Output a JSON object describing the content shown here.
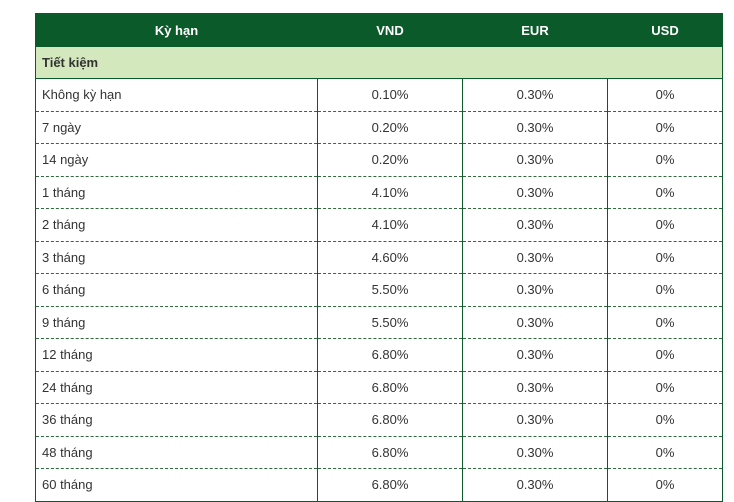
{
  "table": {
    "headers": [
      "Kỳ hạn",
      "VND",
      "EUR",
      "USD"
    ],
    "section_label": "Tiết kiệm",
    "rows": [
      {
        "term": "Không kỳ hạn",
        "vnd": "0.10%",
        "eur": "0.30%",
        "usd": "0%"
      },
      {
        "term": "7 ngày",
        "vnd": "0.20%",
        "eur": "0.30%",
        "usd": "0%"
      },
      {
        "term": "14 ngày",
        "vnd": "0.20%",
        "eur": "0.30%",
        "usd": "0%"
      },
      {
        "term": "1 tháng",
        "vnd": "4.10%",
        "eur": "0.30%",
        "usd": "0%"
      },
      {
        "term": "2 tháng",
        "vnd": "4.10%",
        "eur": "0.30%",
        "usd": "0%"
      },
      {
        "term": "3 tháng",
        "vnd": "4.60%",
        "eur": "0.30%",
        "usd": "0%"
      },
      {
        "term": "6 tháng",
        "vnd": "5.50%",
        "eur": "0.30%",
        "usd": "0%"
      },
      {
        "term": "9 tháng",
        "vnd": "5.50%",
        "eur": "0.30%",
        "usd": "0%"
      },
      {
        "term": "12 tháng",
        "vnd": "6.80%",
        "eur": "0.30%",
        "usd": "0%"
      },
      {
        "term": "24 tháng",
        "vnd": "6.80%",
        "eur": "0.30%",
        "usd": "0%"
      },
      {
        "term": "36 tháng",
        "vnd": "6.80%",
        "eur": "0.30%",
        "usd": "0%"
      },
      {
        "term": "48 tháng",
        "vnd": "6.80%",
        "eur": "0.30%",
        "usd": "0%"
      },
      {
        "term": "60 tháng",
        "vnd": "6.80%",
        "eur": "0.30%",
        "usd": "0%"
      }
    ]
  },
  "colors": {
    "header_bg": "#0b5a2a",
    "section_bg": "#d3e8bd",
    "text": "#333333"
  }
}
